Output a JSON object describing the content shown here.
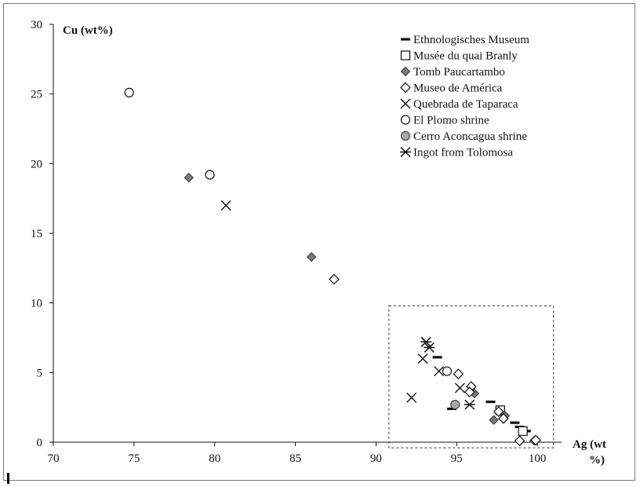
{
  "chart_data": {
    "type": "scatter",
    "title": "",
    "xlabel": "Ag (wt %)",
    "xlabel_lines": [
      "Ag (wt",
      "%)"
    ],
    "ylabel": "Cu (wt%)",
    "xlim": [
      70,
      101.5
    ],
    "ylim": [
      0,
      30
    ],
    "xticks": [
      "70",
      "75",
      "80",
      "85",
      "90",
      "95",
      "100"
    ],
    "yticks": [
      "0",
      "5",
      "10",
      "15",
      "20",
      "25",
      "30"
    ],
    "grid": false,
    "legend_position": "top-right",
    "zoom_box": {
      "x": [
        90.8,
        101.0
      ],
      "y": [
        -0.4,
        9.8
      ],
      "style": "dashed"
    },
    "series": [
      {
        "name": "Ethnologisches Museum",
        "marker": "dash",
        "color": "#111111",
        "points": [
          [
            93.8,
            6.1
          ],
          [
            94.7,
            2.4
          ],
          [
            97.1,
            2.9
          ],
          [
            98.6,
            1.4
          ],
          [
            98.9,
            1.1
          ],
          [
            99.3,
            0.8
          ]
        ]
      },
      {
        "name": "Musée du quai Branly",
        "marker": "square",
        "color": "#ffffff",
        "points": [
          [
            97.7,
            2.3
          ],
          [
            99.1,
            0.8
          ]
        ]
      },
      {
        "name": "Tomb Paucartambo",
        "marker": "diamond-filled",
        "color": "#7a7a7a",
        "points": [
          [
            78.4,
            19.0
          ],
          [
            86.0,
            13.3
          ],
          [
            96.1,
            3.5
          ],
          [
            97.3,
            1.6
          ],
          [
            98.0,
            1.9
          ],
          [
            99.8,
            0.1
          ],
          [
            99.9,
            0.15
          ]
        ]
      },
      {
        "name": "Museo de América",
        "marker": "diamond",
        "color": "#ffffff",
        "points": [
          [
            87.4,
            11.7
          ],
          [
            95.1,
            4.9
          ],
          [
            95.9,
            4.0
          ],
          [
            95.8,
            3.6
          ],
          [
            97.6,
            2.2
          ],
          [
            97.9,
            1.7
          ],
          [
            98.9,
            0.1
          ],
          [
            99.9,
            0.15
          ]
        ]
      },
      {
        "name": "Quebrada de Taparaca",
        "marker": "x",
        "color": "#111111",
        "points": [
          [
            80.7,
            17.0
          ],
          [
            92.2,
            3.2
          ],
          [
            92.9,
            6.0
          ],
          [
            93.9,
            5.1
          ],
          [
            95.2,
            3.9
          ]
        ]
      },
      {
        "name": "El Plomo shrine",
        "marker": "circle",
        "color": "#ffffff",
        "points": [
          [
            74.7,
            25.1
          ],
          [
            79.7,
            19.2
          ],
          [
            94.4,
            5.1
          ]
        ]
      },
      {
        "name": "Cerro Aconcagua shrine",
        "marker": "circle-filled",
        "color": "#a8a8a8",
        "points": [
          [
            94.9,
            2.7
          ]
        ]
      },
      {
        "name": "Ingot from Tolomosa",
        "marker": "asterisk",
        "color": "#111111",
        "points": [
          [
            93.1,
            7.2
          ],
          [
            93.3,
            6.8
          ],
          [
            95.8,
            2.7
          ]
        ]
      }
    ]
  }
}
